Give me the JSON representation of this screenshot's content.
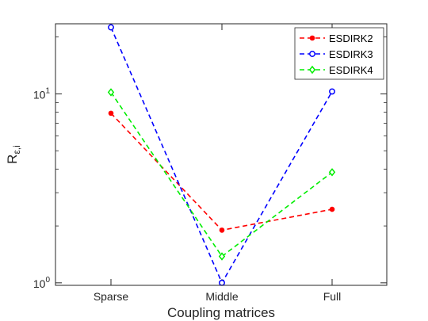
{
  "chart_data": {
    "type": "line",
    "title": "",
    "xlabel": "Coupling matrices",
    "ylabel_main": "R",
    "ylabel_sub": "ε,i",
    "categories": [
      "Sparse",
      "Middle",
      "Full"
    ],
    "yscale": "log",
    "ylim": [
      0.97,
      23.5
    ],
    "ytick_labels": [
      {
        "value": 1,
        "base": "10",
        "exp": "0"
      },
      {
        "value": 10,
        "base": "10",
        "exp": "1"
      }
    ],
    "grid": false,
    "legend_position": "top-right",
    "series": [
      {
        "name": "ESDIRK2",
        "color": "#ff0000",
        "marker": "dot",
        "values": [
          7.9,
          1.9,
          2.45
        ]
      },
      {
        "name": "ESDIRK3",
        "color": "#0000ff",
        "marker": "circle",
        "values": [
          22.5,
          1.0,
          10.3
        ]
      },
      {
        "name": "ESDIRK4",
        "color": "#00ee00",
        "marker": "diamond",
        "values": [
          10.2,
          1.38,
          3.85
        ]
      }
    ]
  }
}
